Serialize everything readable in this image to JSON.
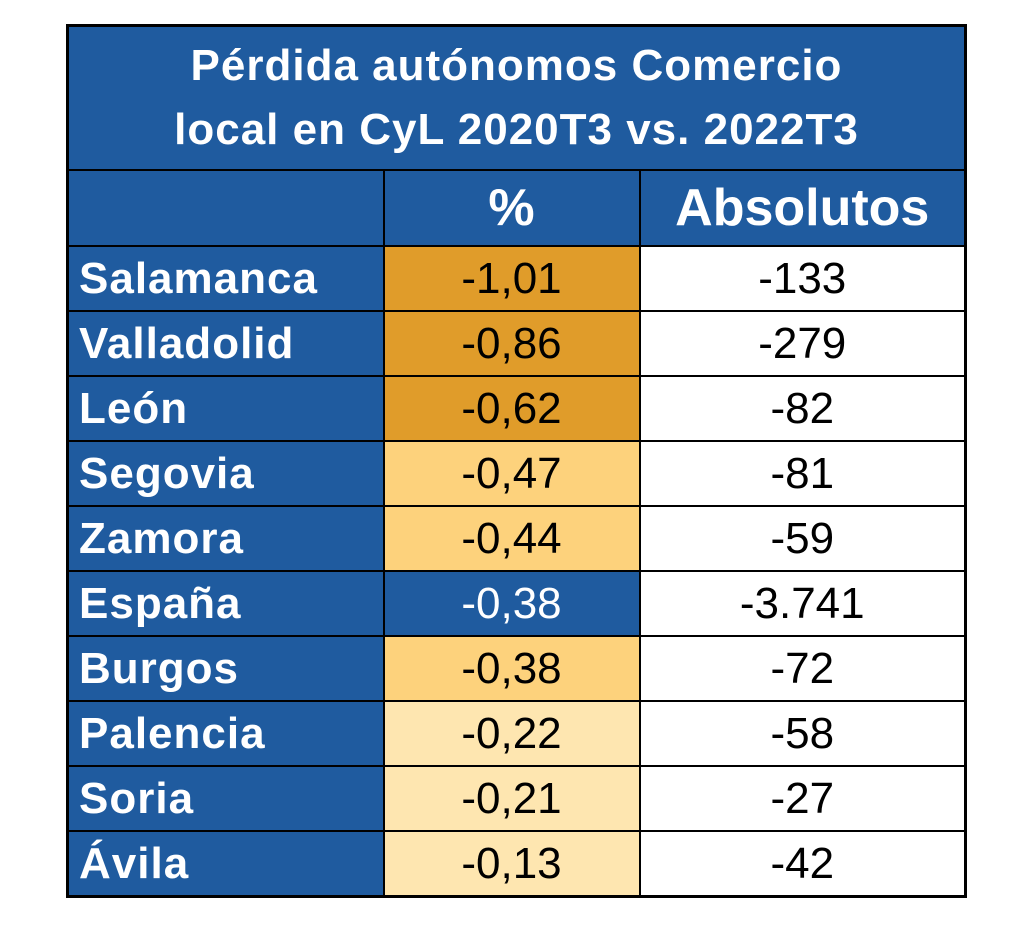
{
  "chart_data": {
    "type": "table",
    "title_lines": [
      "Pérdida autónomos Comercio",
      "local en CyL 2020T3 vs. 2022T3"
    ],
    "columns": [
      "",
      "%",
      "Absolutos"
    ],
    "rows": [
      {
        "label": "Salamanca",
        "pct": "-1,01",
        "abs": "-133",
        "pct_color": "#e09c2a",
        "pct_text_color": "#000000"
      },
      {
        "label": "Valladolid",
        "pct": "-0,86",
        "abs": "-279",
        "pct_color": "#e09c2a",
        "pct_text_color": "#000000"
      },
      {
        "label": "León",
        "pct": "-0,62",
        "abs": "-82",
        "pct_color": "#e09c2a",
        "pct_text_color": "#000000"
      },
      {
        "label": "Segovia",
        "pct": "-0,47",
        "abs": "-81",
        "pct_color": "#fdd27c",
        "pct_text_color": "#000000"
      },
      {
        "label": "Zamora",
        "pct": "-0,44",
        "abs": "-59",
        "pct_color": "#fdd27c",
        "pct_text_color": "#000000"
      },
      {
        "label": "España",
        "pct": "-0,38",
        "abs": "-3.741",
        "pct_color": "#1f5b9f",
        "pct_text_color": "#ffffff"
      },
      {
        "label": "Burgos",
        "pct": "-0,38",
        "abs": "-72",
        "pct_color": "#fdd27c",
        "pct_text_color": "#000000"
      },
      {
        "label": "Palencia",
        "pct": "-0,22",
        "abs": "-58",
        "pct_color": "#fee6b0",
        "pct_text_color": "#000000"
      },
      {
        "label": "Soria",
        "pct": "-0,21",
        "abs": "-27",
        "pct_color": "#fee6b0",
        "pct_text_color": "#000000"
      },
      {
        "label": "Ávila",
        "pct": "-0,13",
        "abs": "-42",
        "pct_color": "#fee6b0",
        "pct_text_color": "#000000"
      }
    ]
  }
}
